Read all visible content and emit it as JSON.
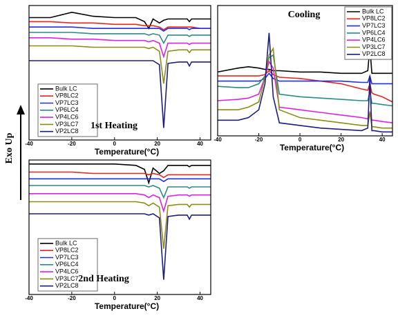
{
  "y_label": "Exo Up",
  "chart_data": [
    {
      "type": "line",
      "title": "1st Heating",
      "x_label": "Temperature(°C)",
      "x": [
        -40,
        -30,
        -20,
        -10,
        0,
        10,
        14,
        16,
        18,
        21,
        23,
        25,
        30,
        34,
        35,
        36,
        40,
        45
      ],
      "xlim": [
        -40,
        45
      ],
      "xticks": [
        -40,
        -20,
        0,
        20,
        40
      ],
      "ylim": [
        0,
        100
      ],
      "legend": "lower left",
      "series": [
        {
          "name": "Bulk LC",
          "color": "#000000",
          "values": [
            91,
            91,
            95,
            92,
            91,
            91,
            88,
            83,
            90,
            87,
            89,
            90,
            90,
            90,
            88,
            90,
            90,
            90
          ]
        },
        {
          "name": "VP8LC2",
          "color": "#e8251c",
          "values": [
            88,
            88,
            87,
            87,
            86,
            86,
            85,
            85,
            85,
            84,
            82,
            84,
            84,
            84,
            84,
            84,
            83,
            83
          ]
        },
        {
          "name": "VP7LC3",
          "color": "#1c2ee8",
          "values": [
            84,
            84,
            84,
            83,
            83,
            83,
            83,
            83,
            83,
            83,
            81,
            83,
            83,
            83,
            82,
            83,
            83,
            83
          ]
        },
        {
          "name": "VP6LC4",
          "color": "#2a8a84",
          "values": [
            80,
            80,
            80,
            79,
            79,
            79,
            79,
            78,
            79,
            78,
            72,
            78,
            78,
            78,
            77,
            78,
            78,
            78
          ]
        },
        {
          "name": "VP4LC6",
          "color": "#e020e0",
          "values": [
            76,
            76,
            75,
            75,
            74,
            74,
            74,
            73,
            74,
            72,
            62,
            72,
            72,
            72,
            71,
            72,
            72,
            72
          ]
        },
        {
          "name": "VP3LC7",
          "color": "#8c8c10",
          "values": [
            70,
            70,
            70,
            69,
            69,
            69,
            69,
            68,
            69,
            66,
            42,
            66,
            67,
            67,
            65,
            67,
            67,
            67
          ]
        },
        {
          "name": "VP2LC8",
          "color": "#1c1c80",
          "values": [
            59,
            59,
            59,
            59,
            59,
            59,
            59,
            59,
            59,
            56,
            9,
            57,
            58,
            58,
            55,
            58,
            58,
            58
          ]
        }
      ]
    },
    {
      "type": "line",
      "title": "Cooling",
      "x_label": "Temperature(°C)",
      "x": [
        -40,
        -30,
        -25,
        -20,
        -17,
        -15,
        -13,
        -10,
        0,
        10,
        20,
        30,
        33,
        34,
        35,
        36,
        40,
        45
      ],
      "xlim": [
        -40,
        45
      ],
      "xticks": [
        -40,
        -20,
        0,
        20,
        40
      ],
      "ylim": [
        0,
        100
      ],
      "legend": "upper right",
      "series": [
        {
          "name": "Bulk LC",
          "color": "#000000",
          "values": [
            49,
            52,
            53,
            52,
            51,
            51,
            50,
            50,
            49,
            49,
            48,
            48,
            50,
            68,
            48,
            48,
            48,
            48
          ]
        },
        {
          "name": "VP8LC2",
          "color": "#e8251c",
          "values": [
            46,
            46,
            46,
            46,
            47,
            50,
            47,
            45,
            44,
            42,
            40,
            36,
            35,
            40,
            33,
            32,
            30,
            26
          ]
        },
        {
          "name": "VP7LC3",
          "color": "#1c2ee8",
          "values": [
            42,
            42,
            42,
            42,
            44,
            48,
            44,
            42,
            42,
            42,
            42,
            41,
            41,
            46,
            40,
            40,
            40,
            40
          ]
        },
        {
          "name": "VP6LC4",
          "color": "#2a8a84",
          "values": [
            38,
            37,
            37,
            40,
            46,
            60,
            62,
            32,
            30,
            29,
            28,
            27,
            27,
            34,
            25,
            25,
            24,
            23
          ]
        },
        {
          "name": "VP4LC6",
          "color": "#e020e0",
          "values": [
            27,
            28,
            29,
            32,
            45,
            57,
            52,
            22,
            20,
            18,
            16,
            14,
            13,
            18,
            12,
            12,
            11,
            10
          ]
        },
        {
          "name": "VP3LC7",
          "color": "#8c8c10",
          "values": [
            20,
            20,
            22,
            26,
            45,
            62,
            67,
            20,
            14,
            12,
            10,
            8,
            8,
            18,
            7,
            7,
            6,
            6
          ]
        },
        {
          "name": "VP2LC8",
          "color": "#1c1c80",
          "values": [
            12,
            12,
            14,
            20,
            40,
            79,
            30,
            10,
            8,
            6,
            5,
            4,
            6,
            46,
            4,
            4,
            3,
            3
          ]
        }
      ]
    },
    {
      "type": "line",
      "title": "2nd Heating",
      "x_label": "Temperature(°C)",
      "x": [
        -40,
        -30,
        -20,
        -10,
        0,
        10,
        14,
        16,
        18,
        21,
        23,
        25,
        30,
        34,
        35,
        36,
        40,
        45
      ],
      "xlim": [
        -40,
        45
      ],
      "xticks": [
        -40,
        -20,
        0,
        20,
        40
      ],
      "ylim": [
        0,
        100
      ],
      "legend": "lower left",
      "series": [
        {
          "name": "Bulk LC",
          "color": "#000000",
          "values": [
            97,
            97,
            97,
            97,
            97,
            96,
            93,
            83,
            94,
            90,
            92,
            96,
            96,
            96,
            95,
            96,
            96,
            96
          ]
        },
        {
          "name": "VP8LC2",
          "color": "#e8251c",
          "values": [
            91,
            91,
            91,
            90,
            90,
            90,
            90,
            89,
            90,
            89,
            87,
            89,
            89,
            89,
            89,
            89,
            89,
            89
          ]
        },
        {
          "name": "VP7LC3",
          "color": "#1c2ee8",
          "values": [
            86,
            86,
            86,
            86,
            86,
            86,
            86,
            86,
            86,
            86,
            84,
            86,
            86,
            86,
            86,
            86,
            86,
            86
          ]
        },
        {
          "name": "VP6LC4",
          "color": "#2a8a84",
          "values": [
            81,
            81,
            81,
            81,
            81,
            81,
            81,
            80,
            81,
            79,
            72,
            80,
            80,
            80,
            79,
            80,
            80,
            80
          ]
        },
        {
          "name": "VP4LC6",
          "color": "#e020e0",
          "values": [
            75,
            75,
            75,
            75,
            75,
            75,
            74,
            72,
            74,
            72,
            62,
            73,
            74,
            74,
            73,
            74,
            74,
            74
          ]
        },
        {
          "name": "VP3LC7",
          "color": "#8c8c10",
          "values": [
            69,
            69,
            69,
            69,
            69,
            69,
            68,
            66,
            68,
            65,
            34,
            66,
            67,
            67,
            65,
            67,
            67,
            67
          ]
        },
        {
          "name": "VP2LC8",
          "color": "#1c1c80",
          "values": [
            60,
            60,
            60,
            60,
            60,
            60,
            60,
            59,
            60,
            57,
            11,
            58,
            59,
            59,
            56,
            59,
            59,
            59
          ]
        }
      ]
    }
  ]
}
